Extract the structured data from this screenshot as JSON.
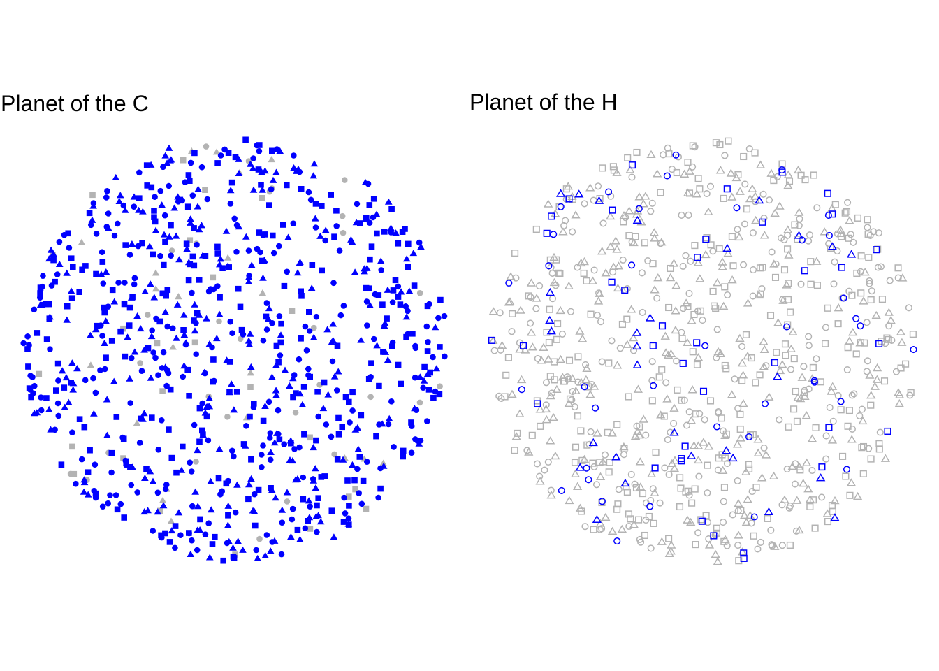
{
  "chart_data": [
    {
      "type": "scatter",
      "title": "Planet of the C",
      "xlabel": "",
      "ylabel": "",
      "axes": "none",
      "grid": false,
      "legend": "none",
      "fill": "solid",
      "point_count": 880,
      "shapes": [
        "circle",
        "square",
        "triangle"
      ],
      "group_shares": {
        "blue": 0.92,
        "gray": 0.08
      },
      "colors": {
        "blue": "#0000ff",
        "gray": "#b3b3b3"
      },
      "seed": 17
    },
    {
      "type": "scatter",
      "title": "Planet of the H",
      "xlabel": "",
      "ylabel": "",
      "axes": "none",
      "grid": false,
      "legend": "none",
      "fill": "hollow",
      "point_count": 880,
      "shapes": [
        "circle",
        "square",
        "triangle"
      ],
      "group_shares": {
        "blue": 0.13,
        "gray": 0.87
      },
      "colors": {
        "blue": "#0000ff",
        "gray": "#b3b3b3"
      },
      "seed": 29
    }
  ]
}
